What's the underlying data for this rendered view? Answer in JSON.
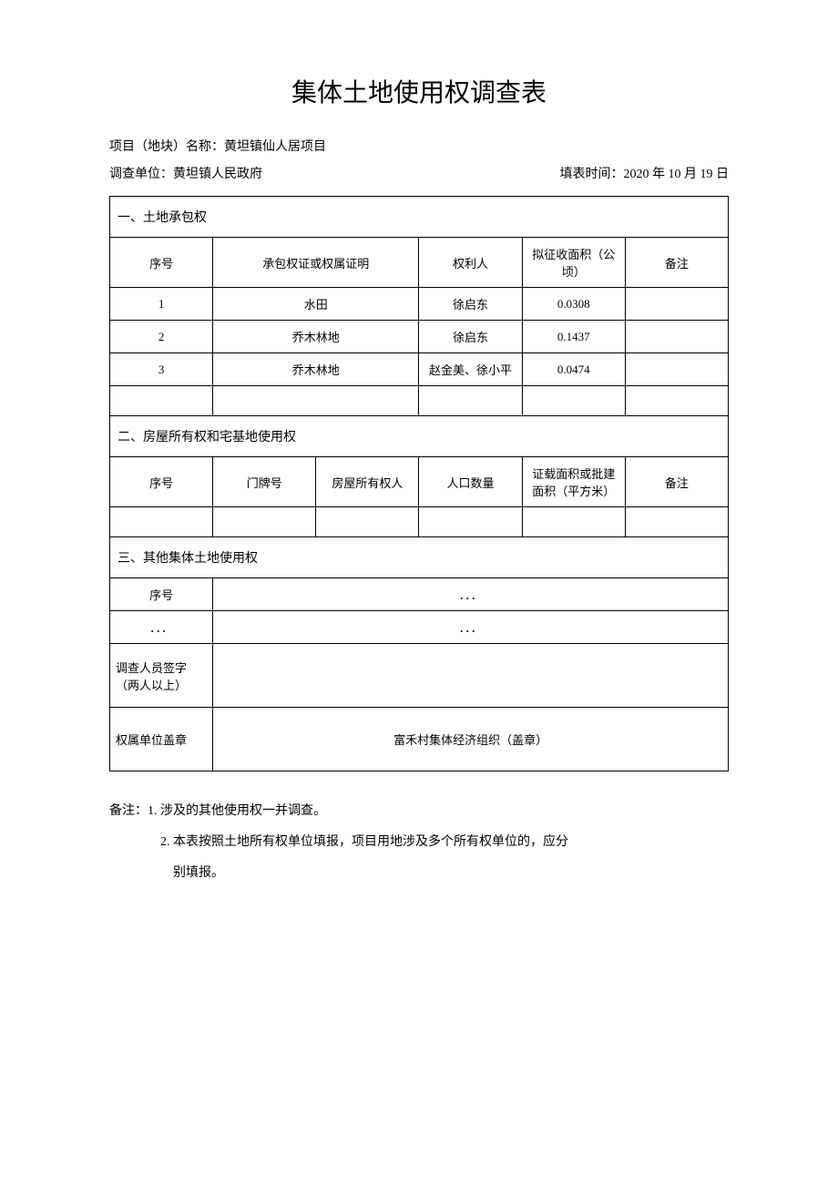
{
  "title": "集体土地使用权调查表",
  "meta": {
    "project_label": "项目（地块）名称：",
    "project_name": "黄坦镇仙人居项目",
    "survey_unit_label": "调查单位：",
    "survey_unit": "黄坦镇人民政府",
    "fill_time_label": "填表时间：",
    "fill_time": "2020 年 10 月 19 日"
  },
  "section1": {
    "header": "一、土地承包权",
    "cols": {
      "seq": "序号",
      "cert": "承包权证或权属证明",
      "holder": "权利人",
      "area": "拟征收面积（公顷）",
      "remark": "备注"
    },
    "rows": [
      {
        "seq": "1",
        "cert": "水田",
        "holder": "徐启东",
        "area": "0.0308",
        "remark": ""
      },
      {
        "seq": "2",
        "cert": "乔木林地",
        "holder": "徐启东",
        "area": "0.1437",
        "remark": ""
      },
      {
        "seq": "3",
        "cert": "乔木林地",
        "holder": "赵金美、徐小平",
        "area": "0.0474",
        "remark": ""
      }
    ]
  },
  "section2": {
    "header": "二、房屋所有权和宅基地使用权",
    "cols": {
      "seq": "序号",
      "door": "门牌号",
      "owner": "房屋所有权人",
      "pop": "人口数量",
      "area": "证载面积或批建面积（平方米）",
      "remark": "备注"
    }
  },
  "section3": {
    "header": "三、其他集体土地使用权",
    "cols": {
      "seq": "序号",
      "ellipsis": "．．．"
    },
    "ellipsis_row": "．．．"
  },
  "signatures": {
    "investigator": "调查人员签字（两人以上）",
    "seal_label": "权属单位盖章",
    "seal_value": "富禾村集体经济组织（盖章）"
  },
  "notes": {
    "line1": "备注：1. 涉及的其他使用权一并调查。",
    "line2": "2. 本表按照土地所有权单位填报，项目用地涉及多个所有权单位的，应分",
    "line3": "别填报。"
  }
}
